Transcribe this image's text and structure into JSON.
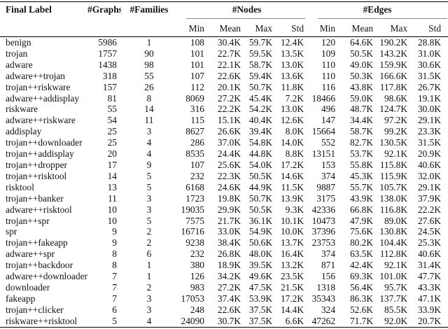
{
  "table": {
    "header": {
      "final_label": "Final Label",
      "graphs": "#Graphs",
      "families": "#Families",
      "nodes": "#Nodes",
      "edges": "#Edges",
      "sub": [
        "Min",
        "Mean",
        "Max",
        "Std"
      ]
    },
    "rows": [
      [
        "benign",
        "5986",
        "1",
        "108",
        "30.4K",
        "59.7K",
        "12.4K",
        "120",
        "64.6K",
        "190.2K",
        "28.8K"
      ],
      [
        "trojan",
        "1757",
        "90",
        "101",
        "22.7K",
        "59.5K",
        "13.5K",
        "109",
        "50.5K",
        "143.2K",
        "31.0K"
      ],
      [
        "adware",
        "1438",
        "98",
        "101",
        "22.1K",
        "58.7K",
        "13.0K",
        "110",
        "49.0K",
        "159.9K",
        "30.6K"
      ],
      [
        "adware++trojan",
        "318",
        "55",
        "107",
        "22.6K",
        "59.4K",
        "13.6K",
        "110",
        "50.3K",
        "166.6K",
        "31.5K"
      ],
      [
        "trojan++riskware",
        "157",
        "26",
        "112",
        "20.1K",
        "50.7K",
        "11.8K",
        "116",
        "43.8K",
        "117.8K",
        "26.7K"
      ],
      [
        "adware++addisplay",
        "81",
        "8",
        "8069",
        "27.2K",
        "45.4K",
        "7.2K",
        "18466",
        "59.0K",
        "98.6K",
        "19.1K"
      ],
      [
        "riskware",
        "55",
        "14",
        "316",
        "22.2K",
        "54.2K",
        "13.0K",
        "496",
        "48.7K",
        "124.7K",
        "30.0K"
      ],
      [
        "adware++riskware",
        "54",
        "11",
        "115",
        "15.1K",
        "40.4K",
        "12.6K",
        "147",
        "34.4K",
        "97.2K",
        "29.1K"
      ],
      [
        "addisplay",
        "25",
        "3",
        "8627",
        "26.6K",
        "39.4K",
        "8.0K",
        "15664",
        "58.7K",
        "99.2K",
        "23.3K"
      ],
      [
        "trojan++downloader",
        "25",
        "4",
        "286",
        "37.0K",
        "54.8K",
        "14.0K",
        "552",
        "82.7K",
        "130.5K",
        "31.5K"
      ],
      [
        "trojan++addisplay",
        "20",
        "4",
        "8535",
        "24.4K",
        "44.8K",
        "8.8K",
        "13151",
        "53.7K",
        "92.1K",
        "20.9K"
      ],
      [
        "trojan++dropper",
        "17",
        "9",
        "107",
        "25.6K",
        "54.0K",
        "17.2K",
        "153",
        "55.8K",
        "115.8K",
        "40.6K"
      ],
      [
        "trojan++risktool",
        "14",
        "5",
        "232",
        "22.3K",
        "50.5K",
        "14.6K",
        "374",
        "45.3K",
        "115.9K",
        "32.0K"
      ],
      [
        "risktool",
        "13",
        "5",
        "6168",
        "24.6K",
        "44.9K",
        "11.5K",
        "9887",
        "55.7K",
        "105.7K",
        "29.1K"
      ],
      [
        "trojan++banker",
        "11",
        "3",
        "1723",
        "19.8K",
        "50.7K",
        "13.9K",
        "3175",
        "43.9K",
        "138.0K",
        "37.9K"
      ],
      [
        "adware++risktool",
        "10",
        "3",
        "19035",
        "29.9K",
        "50.5K",
        "9.3K",
        "42336",
        "66.8K",
        "116.8K",
        "22.2K"
      ],
      [
        "trojan++spr",
        "10",
        "5",
        "7575",
        "21.7K",
        "36.1K",
        "10.1K",
        "10473",
        "47.9K",
        "89.0K",
        "27.6K"
      ],
      [
        "spr",
        "9",
        "2",
        "16716",
        "33.0K",
        "54.9K",
        "10.0K",
        "37396",
        "75.6K",
        "130.8K",
        "24.5K"
      ],
      [
        "trojan++fakeapp",
        "9",
        "2",
        "9238",
        "38.4K",
        "50.6K",
        "13.7K",
        "23753",
        "80.2K",
        "104.4K",
        "25.3K"
      ],
      [
        "adware++spr",
        "8",
        "6",
        "232",
        "26.8K",
        "48.0K",
        "16.4K",
        "374",
        "63.5K",
        "112.8K",
        "40.6K"
      ],
      [
        "trojan++backdoor",
        "8",
        "1",
        "380",
        "18.9K",
        "39.5K",
        "13.2K",
        "871",
        "42.4K",
        "92.1K",
        "31.4K"
      ],
      [
        "adware++downloader",
        "7",
        "1",
        "126",
        "34.2K",
        "49.6K",
        "23.5K",
        "156",
        "69.3K",
        "101.0K",
        "47.7K"
      ],
      [
        "downloader",
        "7",
        "2",
        "983",
        "27.2K",
        "47.5K",
        "21.5K",
        "1318",
        "56.4K",
        "95.7K",
        "43.3K"
      ],
      [
        "fakeapp",
        "7",
        "3",
        "17053",
        "37.4K",
        "53.9K",
        "17.2K",
        "35343",
        "86.3K",
        "137.7K",
        "47.1K"
      ],
      [
        "trojan++clicker",
        "6",
        "3",
        "248",
        "22.6K",
        "37.5K",
        "14.4K",
        "324",
        "52.6K",
        "85.5K",
        "33.9K"
      ],
      [
        "riskware++risktool",
        "5",
        "4",
        "24090",
        "30.7K",
        "37.5K",
        "6.6K",
        "47262",
        "71.7K",
        "92.0K",
        "20.7K"
      ]
    ]
  }
}
